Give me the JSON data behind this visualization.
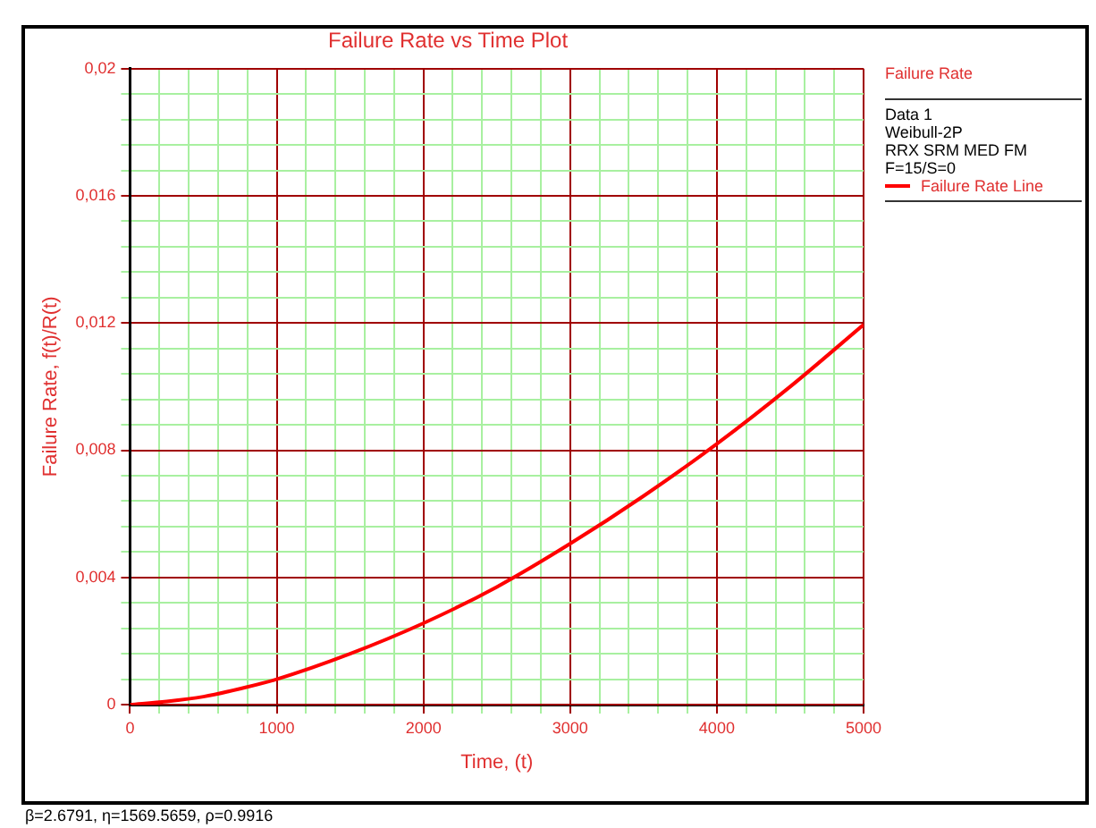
{
  "chart_data": {
    "type": "line",
    "title": "Failure Rate vs Time Plot",
    "xlabel": "Time, (t)",
    "ylabel": "Failure Rate, f(t)/R(t)",
    "legend_title": "Failure Rate",
    "annotations": [
      "Data 1",
      "Weibull-2P",
      "RRX SRM MED FM",
      "F=15/S=0",
      "β=2.6791, η=1569.5659, ρ=0.9916"
    ],
    "x": [
      0,
      250,
      500,
      750,
      1000,
      1500,
      2000,
      2500,
      3000,
      3500,
      4000,
      4500,
      5000
    ],
    "series": [
      {
        "name": "Failure Rate Line",
        "color": "#ff0000",
        "values": [
          0,
          0.0001,
          0.00025,
          0.0005,
          0.0008,
          0.0016,
          0.00256,
          0.0037,
          0.00506,
          0.00656,
          0.0082,
          0.01,
          0.01195
        ]
      }
    ],
    "xlim": [
      0,
      5000
    ],
    "xticks": [
      0,
      {
        "value": 200,
        "label": null
      },
      {
        "value": 400,
        "label": null
      },
      {
        "value": 600,
        "label": null
      },
      {
        "value": 800,
        "label": null
      },
      1000,
      {
        "value": 1200,
        "label": null
      },
      {
        "value": 1400,
        "label": null
      },
      {
        "value": 1600,
        "label": null
      },
      {
        "value": 1800,
        "label": null
      },
      2000,
      {
        "value": 2200,
        "label": null
      },
      {
        "value": 2400,
        "label": null
      },
      {
        "value": 2600,
        "label": null
      },
      {
        "value": 2800,
        "label": null
      },
      3000,
      {
        "value": 3200,
        "label": null
      },
      {
        "value": 3400,
        "label": null
      },
      {
        "value": 3600,
        "label": null
      },
      {
        "value": 3800,
        "label": null
      },
      4000,
      {
        "value": 4200,
        "label": null
      },
      {
        "value": 4400,
        "label": null
      },
      {
        "value": 4600,
        "label": null
      },
      {
        "value": 4800,
        "label": null
      },
      5000
    ],
    "ylim": [
      0,
      0.02
    ],
    "yticks": [
      0,
      {
        "value": 0.0008,
        "label": null
      },
      {
        "value": 0.0016,
        "label": null
      },
      {
        "value": 0.0024,
        "label": null
      },
      {
        "value": 0.0032,
        "label": null
      },
      {
        "value": 0.004,
        "label": "0,004"
      },
      {
        "value": 0.0048,
        "label": null
      },
      {
        "value": 0.0056,
        "label": null
      },
      {
        "value": 0.0064,
        "label": null
      },
      {
        "value": 0.0072,
        "label": null
      },
      {
        "value": 0.008,
        "label": "0,008"
      },
      {
        "value": 0.0088,
        "label": null
      },
      {
        "value": 0.0096,
        "label": null
      },
      {
        "value": 0.0104,
        "label": null
      },
      {
        "value": 0.0112,
        "label": null
      },
      {
        "value": 0.012,
        "label": "0,012"
      },
      {
        "value": 0.0128,
        "label": null
      },
      {
        "value": 0.0136,
        "label": null
      },
      {
        "value": 0.0144,
        "label": null
      },
      {
        "value": 0.0152,
        "label": null
      },
      {
        "value": 0.016,
        "label": "0,016"
      },
      {
        "value": 0.0168,
        "label": null
      },
      {
        "value": 0.0176,
        "label": null
      },
      {
        "value": 0.0184,
        "label": null
      },
      {
        "value": 0.0192,
        "label": null
      },
      {
        "value": 0.02,
        "label": "0,02"
      }
    ],
    "grid": true,
    "legend": "top right",
    "marker": "none",
    "line_style": "solid"
  }
}
